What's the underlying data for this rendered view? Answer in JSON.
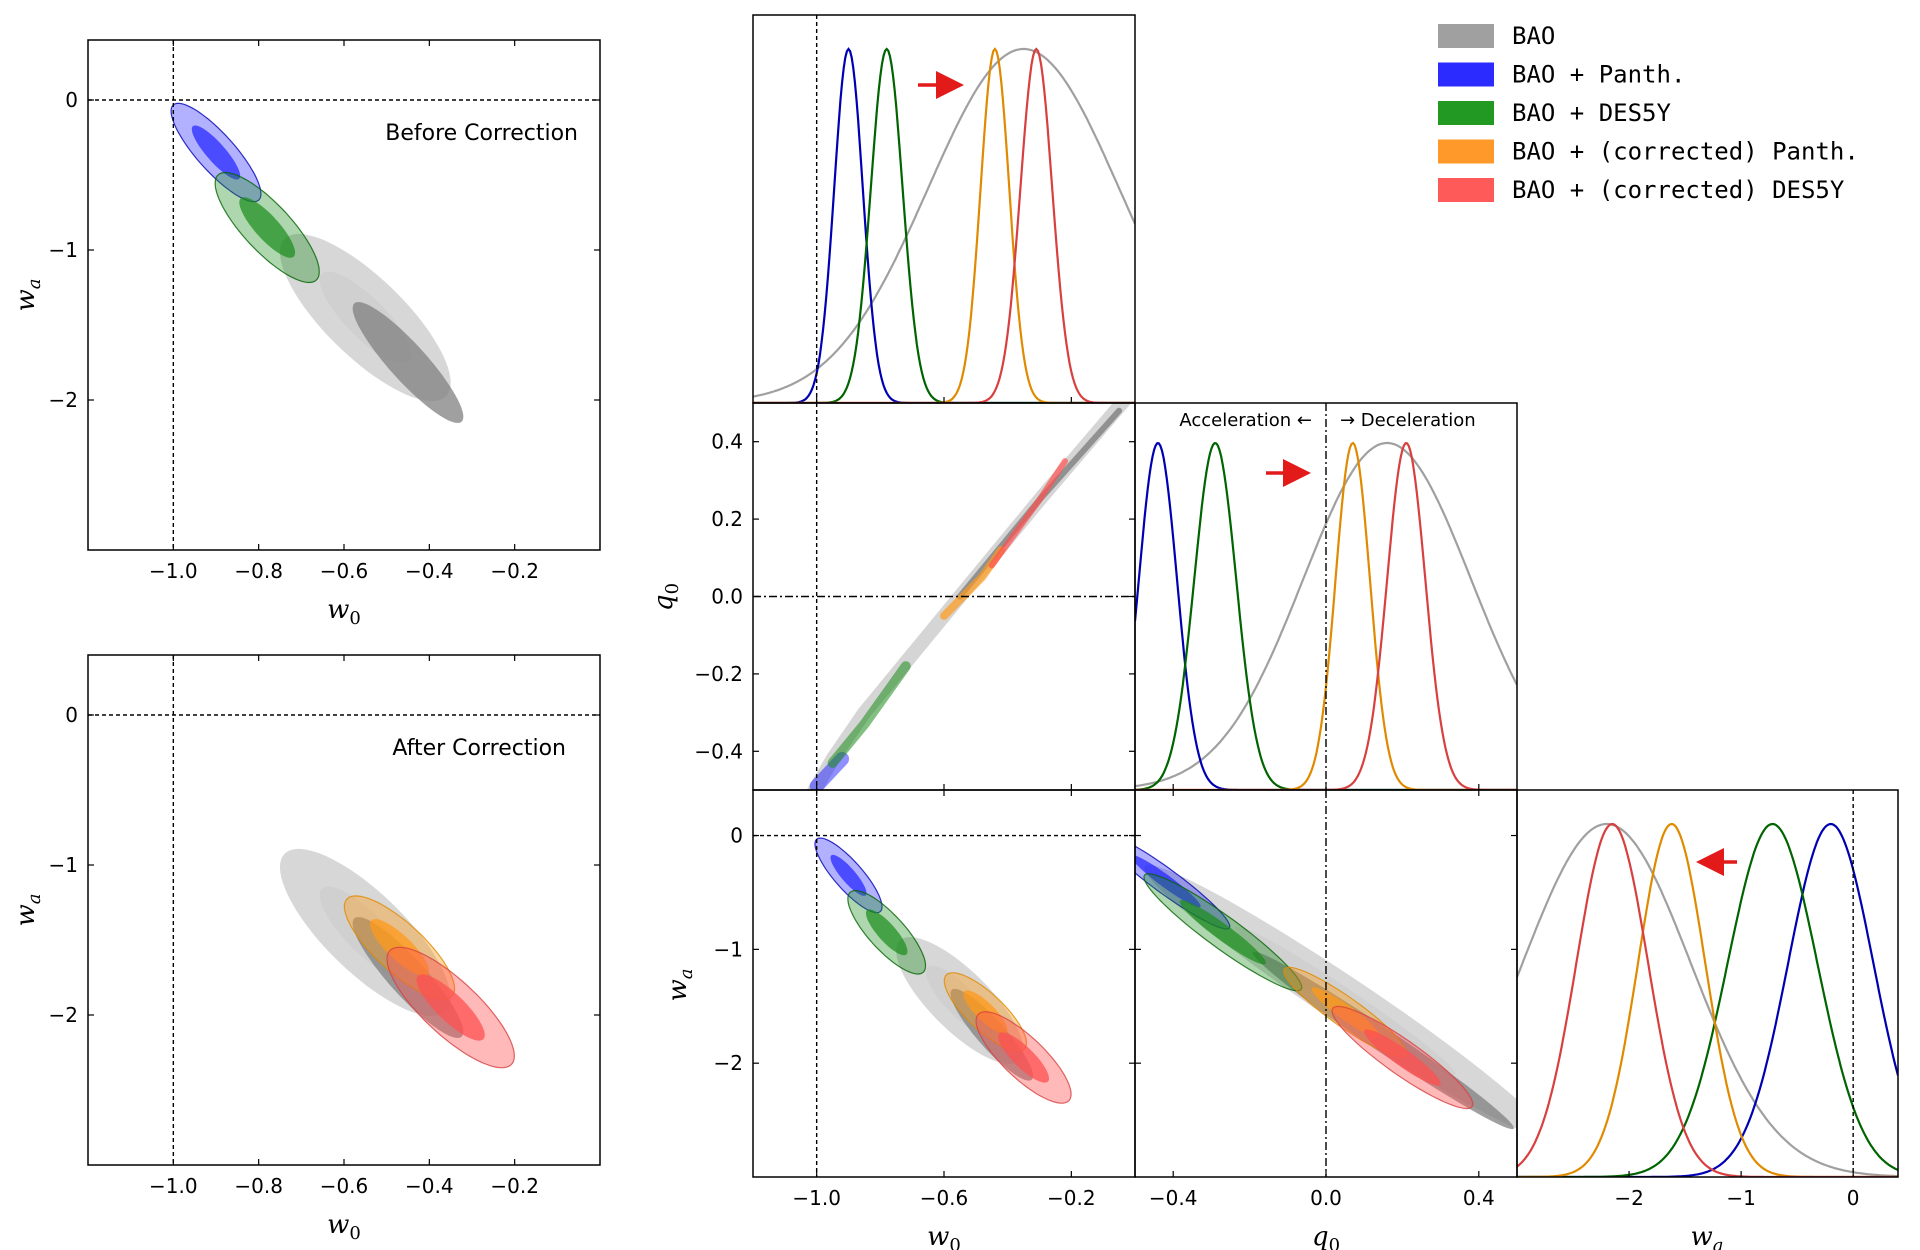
{
  "colors": {
    "BAO": "#a0a0a0",
    "BAO_dark": "#808080",
    "BAO_light": "#d0d0d0",
    "panth": "#1f1fff",
    "panth_line": "#0000b3",
    "des5y": "#1a8c1a",
    "des5y_line": "#006400",
    "corr_panth": "#ff9a1a",
    "corr_panth_line": "#e08a00",
    "corr_des5y": "#ff5050",
    "corr_des5y_line": "#d84040",
    "arrow": "#e31a1a"
  },
  "legend": {
    "entries": [
      {
        "label": "BAO",
        "color": "#a0a0a0"
      },
      {
        "label": "BAO + Panth.",
        "color": "#2b2bff"
      },
      {
        "label": "BAO + DES5Y",
        "color": "#229922"
      },
      {
        "label": "BAO + (corrected) Panth.",
        "color": "#ff9a2a"
      },
      {
        "label": "BAO + (corrected) DES5Y",
        "color": "#ff5a5a"
      }
    ]
  },
  "annotations": {
    "before": "Before Correction",
    "after": "After Correction",
    "acceleration": "Acceleration ←",
    "deceleration": "→ Deceleration"
  },
  "labels": {
    "w0": "w",
    "w0_sub": "0",
    "wa": "w",
    "wa_sub": "a",
    "q0": "q",
    "q0_sub": "0"
  },
  "chart_data": [
    {
      "type": "scatter",
      "panel": "before-correction-w0-wa",
      "annotation": "Before Correction",
      "xlabel": "w0",
      "ylabel": "wa",
      "xlim": [
        -1.2,
        -0.0
      ],
      "ylim": [
        -3.0,
        0.4
      ],
      "xticks": [
        "−1.0",
        "−0.8",
        "−0.6",
        "−0.4",
        "−0.2"
      ],
      "yticks": [
        "0",
        "−1",
        "−2"
      ],
      "reference_lines": {
        "w0": -1.0,
        "wa": 0
      },
      "contours": [
        {
          "series": "BAO",
          "center": [
            -0.55,
            -1.45
          ],
          "slope": -3.4
        },
        {
          "series": "BAO + Panth.",
          "center": [
            -0.87,
            -0.45
          ],
          "slope": -3.4
        },
        {
          "series": "BAO + DES5Y",
          "center": [
            -0.78,
            -0.85
          ],
          "slope": -3.4
        }
      ]
    },
    {
      "type": "scatter",
      "panel": "after-correction-w0-wa",
      "annotation": "After Correction",
      "xlabel": "w0",
      "ylabel": "wa",
      "xlim": [
        -1.2,
        -0.0
      ],
      "ylim": [
        -3.0,
        0.4
      ],
      "xticks": [
        "−1.0",
        "−0.8",
        "−0.6",
        "−0.4",
        "−0.2"
      ],
      "yticks": [
        "0",
        "−1",
        "−2"
      ],
      "reference_lines": {
        "w0": -1.0,
        "wa": 0
      },
      "contours": [
        {
          "series": "BAO",
          "center": [
            -0.55,
            -1.45
          ],
          "slope": -3.4
        },
        {
          "series": "BAO + (corrected) Panth.",
          "center": [
            -0.47,
            -1.55
          ],
          "slope": -3.4
        },
        {
          "series": "BAO + (corrected) DES5Y",
          "center": [
            -0.35,
            -1.95
          ],
          "slope": -3.4
        }
      ]
    },
    {
      "type": "line",
      "panel": "triangle-w0-marginal",
      "xlim": [
        -1.2,
        -0.0
      ],
      "reference_line": -1.0,
      "series": [
        {
          "name": "BAO",
          "peak": -0.35,
          "sigma": 0.3
        },
        {
          "name": "BAO + Panth.",
          "peak": -0.9,
          "sigma": 0.045
        },
        {
          "name": "BAO + DES5Y",
          "peak": -0.78,
          "sigma": 0.05
        },
        {
          "name": "BAO + (corrected) Panth.",
          "peak": -0.44,
          "sigma": 0.045
        },
        {
          "name": "BAO + (corrected) DES5Y",
          "peak": -0.31,
          "sigma": 0.05
        }
      ]
    },
    {
      "type": "scatter",
      "panel": "triangle-w0-q0",
      "xlabel": "",
      "ylabel": "q0",
      "xlim": [
        -1.2,
        -0.0
      ],
      "ylim": [
        -0.5,
        0.5
      ],
      "yticks": [
        "0.4",
        "0.2",
        "0.0",
        "−0.2",
        "−0.4"
      ],
      "reference_lines": {
        "w0": -1.0,
        "q0": 0.0
      }
    },
    {
      "type": "line",
      "panel": "triangle-q0-marginal",
      "xlim": [
        -0.5,
        0.5
      ],
      "reference_line": 0.0,
      "annotation_left": "Acceleration ←",
      "annotation_right": "→ Deceleration",
      "series": [
        {
          "name": "BAO",
          "peak": 0.16,
          "sigma": 0.22
        },
        {
          "name": "BAO + Panth.",
          "peak": -0.44,
          "sigma": 0.05
        },
        {
          "name": "BAO + DES5Y",
          "peak": -0.29,
          "sigma": 0.055
        },
        {
          "name": "BAO + (corrected) Panth.",
          "peak": 0.07,
          "sigma": 0.045
        },
        {
          "name": "BAO + (corrected) DES5Y",
          "peak": 0.21,
          "sigma": 0.05
        }
      ]
    },
    {
      "type": "scatter",
      "panel": "triangle-w0-wa",
      "xlabel": "w0",
      "ylabel": "wa",
      "xlim": [
        -1.2,
        -0.0
      ],
      "ylim": [
        -3.0,
        0.4
      ],
      "xticks": [
        "−1.0",
        "−0.6",
        "−0.2"
      ],
      "yticks": [
        "0",
        "−1",
        "−2"
      ],
      "reference_lines": {
        "w0": -1.0,
        "wa": 0
      }
    },
    {
      "type": "scatter",
      "panel": "triangle-q0-wa",
      "xlabel": "q0",
      "xlim": [
        -0.5,
        0.5
      ],
      "ylim": [
        -3.0,
        0.4
      ],
      "xticks": [
        "−0.4",
        "0.0",
        "0.4"
      ],
      "reference_lines": {
        "q0": 0.0
      }
    },
    {
      "type": "line",
      "panel": "triangle-wa-marginal",
      "xlabel": "wa",
      "xlim": [
        -3.0,
        0.4
      ],
      "xticks": [
        "−2",
        "−1",
        "0"
      ],
      "reference_line": 0,
      "series": [
        {
          "name": "BAO",
          "peak": -2.2,
          "sigma": 0.75
        },
        {
          "name": "BAO + Panth.",
          "peak": -0.2,
          "sigma": 0.38
        },
        {
          "name": "BAO + DES5Y",
          "peak": -0.72,
          "sigma": 0.4
        },
        {
          "name": "BAO + (corrected) Panth.",
          "peak": -1.62,
          "sigma": 0.3
        },
        {
          "name": "BAO + (corrected) DES5Y",
          "peak": -2.15,
          "sigma": 0.32
        }
      ]
    }
  ]
}
